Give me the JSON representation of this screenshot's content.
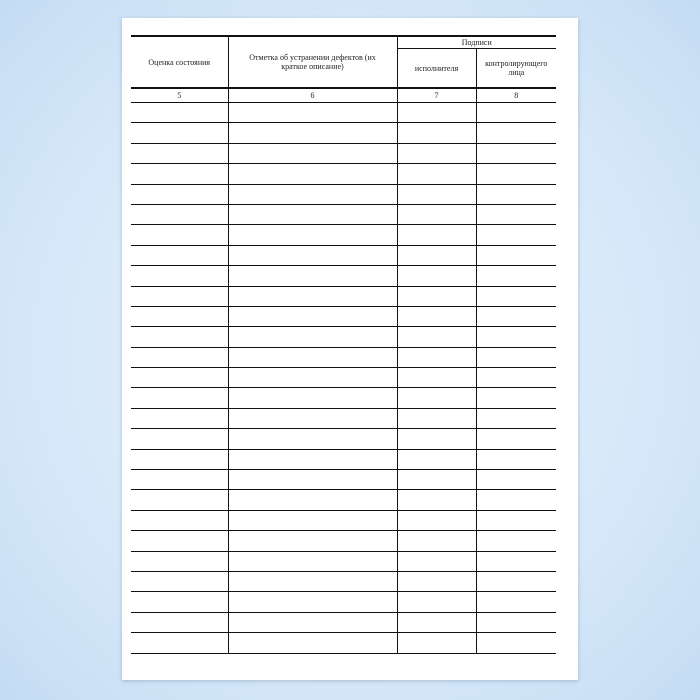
{
  "table": {
    "headers": {
      "col5": "Оценка состояния",
      "col6": "Отметка об устранении дефектов (их краткое описание)",
      "signatures": "Подписи",
      "col7": "исполнителя",
      "col8": "контролирующего лица"
    },
    "column_numbers": [
      "5",
      "6",
      "7",
      "8"
    ],
    "blank_rows": 27
  }
}
